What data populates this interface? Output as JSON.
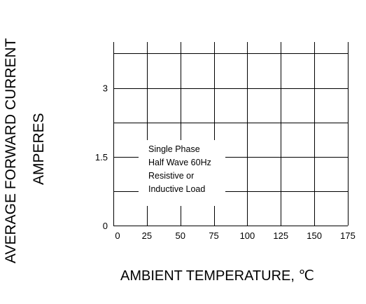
{
  "chart_data": {
    "type": "line",
    "title": "",
    "ylabel_line1": "AVERAGE FORWARD CURRENT",
    "ylabel_line2": "AMPERES",
    "xlabel": "AMBIENT TEMPERATURE, ℃",
    "xlim": [
      0,
      175
    ],
    "ylim": [
      0,
      4
    ],
    "x_ticks": [
      0,
      25,
      50,
      75,
      100,
      125,
      150,
      175
    ],
    "y_ticks": [
      0,
      1.5,
      3
    ],
    "grid": true,
    "gridlines_y": [
      0.75,
      1.5,
      2.25,
      3,
      3.75
    ],
    "gridlines_x": [
      25,
      50,
      75,
      100,
      125,
      150,
      175
    ],
    "series": [],
    "annotation": [
      "Single Phase",
      "Half Wave 60Hz",
      "Resistive or",
      "Inductive Load"
    ]
  }
}
